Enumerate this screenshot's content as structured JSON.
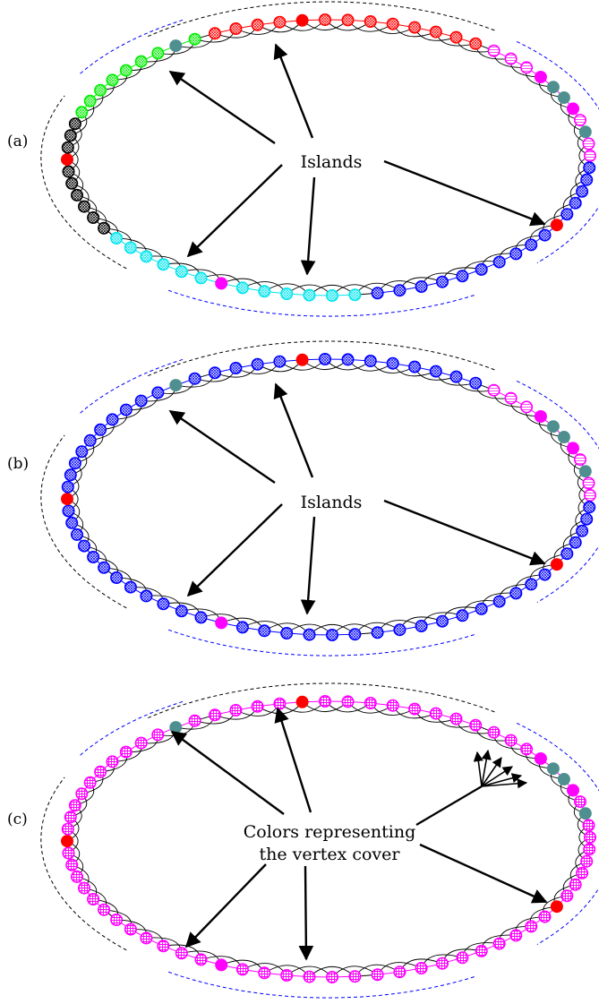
{
  "panels": [
    {
      "letter": "(a)",
      "label_lines": [
        "Islands"
      ],
      "segments": [
        {
          "color": "#ff0000",
          "style": "hatch",
          "count": 13
        },
        {
          "color": "#ff00ff",
          "style": "pink",
          "count": 11
        },
        {
          "color": "#0000ff",
          "style": "hatch",
          "count": 16
        },
        {
          "color": "#00e5ee",
          "style": "hatch",
          "count": 13
        },
        {
          "color": "#000000",
          "style": "hatch",
          "count": 10
        },
        {
          "color": "#00ee00",
          "style": "hatch",
          "count": 9
        }
      ],
      "special_nodes": [
        {
          "seg": 0,
          "idx": 4,
          "color": "#ff0000"
        },
        {
          "seg": 1,
          "idx": 3,
          "color": "#ff00ff"
        },
        {
          "seg": 1,
          "idx": 4,
          "color": "#4f8f8f"
        },
        {
          "seg": 1,
          "idx": 5,
          "color": "#4f8f8f"
        },
        {
          "seg": 1,
          "idx": 6,
          "color": "#ff00ff"
        },
        {
          "seg": 1,
          "idx": 8,
          "color": "#4f8f8f"
        },
        {
          "seg": 2,
          "idx": 5,
          "color": "#ff0000"
        },
        {
          "seg": 3,
          "idx": 6,
          "color": "#ff00ff"
        },
        {
          "seg": 4,
          "idx": 6,
          "color": "#ff0000"
        },
        {
          "seg": 5,
          "idx": 7,
          "color": "#4f8f8f"
        }
      ]
    },
    {
      "letter": "(b)",
      "label_lines": [
        "Islands"
      ],
      "segments": [
        {
          "color": "#0000ff",
          "style": "hatch",
          "count": 13
        },
        {
          "color": "#ff00ff",
          "style": "pink",
          "count": 11
        },
        {
          "color": "#0000ff",
          "style": "hatch",
          "count": 16
        },
        {
          "color": "#0000ff",
          "style": "hatch",
          "count": 13
        },
        {
          "color": "#0000ff",
          "style": "hatch",
          "count": 10
        },
        {
          "color": "#0000ff",
          "style": "hatch",
          "count": 9
        }
      ],
      "special_nodes": [
        {
          "seg": 0,
          "idx": 4,
          "color": "#ff0000"
        },
        {
          "seg": 1,
          "idx": 3,
          "color": "#ff00ff"
        },
        {
          "seg": 1,
          "idx": 4,
          "color": "#4f8f8f"
        },
        {
          "seg": 1,
          "idx": 5,
          "color": "#4f8f8f"
        },
        {
          "seg": 1,
          "idx": 6,
          "color": "#ff00ff"
        },
        {
          "seg": 1,
          "idx": 8,
          "color": "#4f8f8f"
        },
        {
          "seg": 2,
          "idx": 5,
          "color": "#ff0000"
        },
        {
          "seg": 3,
          "idx": 6,
          "color": "#ff00ff"
        },
        {
          "seg": 4,
          "idx": 6,
          "color": "#ff0000"
        },
        {
          "seg": 5,
          "idx": 7,
          "color": "#4f8f8f"
        }
      ]
    },
    {
      "letter": "(c)",
      "label_lines": [
        "Colors representing",
        "the vertex cover"
      ],
      "segments": [
        {
          "color": "#ff00ff",
          "style": "grid",
          "count": 13
        },
        {
          "color": "#ff00ff",
          "style": "grid",
          "count": 11
        },
        {
          "color": "#ff00ff",
          "style": "grid",
          "count": 16
        },
        {
          "color": "#ff00ff",
          "style": "grid",
          "count": 13
        },
        {
          "color": "#ff00ff",
          "style": "grid",
          "count": 10
        },
        {
          "color": "#ff00ff",
          "style": "grid",
          "count": 9
        }
      ],
      "special_nodes": [
        {
          "seg": 0,
          "idx": 4,
          "color": "#ff0000"
        },
        {
          "seg": 1,
          "idx": 3,
          "color": "#ff00ff"
        },
        {
          "seg": 1,
          "idx": 4,
          "color": "#4f8f8f"
        },
        {
          "seg": 1,
          "idx": 5,
          "color": "#4f8f8f"
        },
        {
          "seg": 1,
          "idx": 6,
          "color": "#ff00ff"
        },
        {
          "seg": 1,
          "idx": 8,
          "color": "#4f8f8f"
        },
        {
          "seg": 2,
          "idx": 5,
          "color": "#ff0000"
        },
        {
          "seg": 3,
          "idx": 6,
          "color": "#ff00ff"
        },
        {
          "seg": 4,
          "idx": 6,
          "color": "#ff0000"
        },
        {
          "seg": 5,
          "idx": 7,
          "color": "#4f8f8f"
        }
      ]
    }
  ],
  "colors": {
    "arc": "#000000",
    "guide_black": "#000000",
    "guide_blue": "#0000ff",
    "arrow": "#000000"
  }
}
